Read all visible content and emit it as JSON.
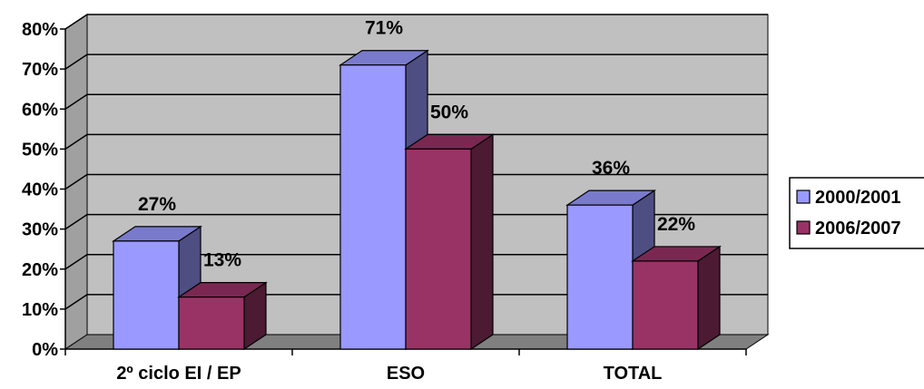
{
  "chart_data": {
    "type": "bar",
    "style": "3d-clustered-column",
    "categories": [
      "2º ciclo EI / EP",
      "ESO",
      "TOTAL"
    ],
    "series": [
      {
        "name": "2000/2001",
        "values": [
          27,
          71,
          36
        ],
        "labels": [
          "27%",
          "71%",
          "36%"
        ]
      },
      {
        "name": "2006/2007",
        "values": [
          13,
          50,
          22
        ],
        "labels": [
          "13%",
          "50%",
          "22%"
        ]
      }
    ],
    "y_ticks": [
      "0%",
      "10%",
      "20%",
      "30%",
      "40%",
      "50%",
      "60%",
      "70%",
      "80%"
    ],
    "ylim": [
      0,
      80
    ],
    "grid": true,
    "legend_position": "right",
    "title": "",
    "xlabel": "",
    "ylabel": ""
  },
  "colors": {
    "wall": "#c0c0c0",
    "floor": "#808080",
    "series_front": [
      "#9999ff",
      "#993366"
    ],
    "series_side": [
      "#4e4e82",
      "#4c1a33"
    ],
    "series_top": [
      "#7a7acc",
      "#7a2852"
    ]
  }
}
